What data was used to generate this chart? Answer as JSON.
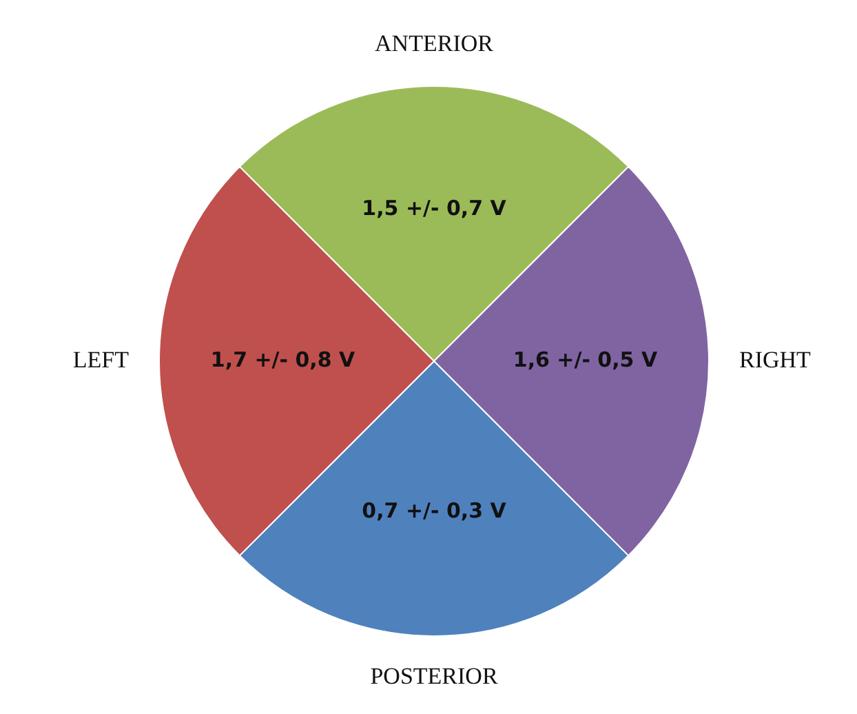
{
  "chart_data": {
    "type": "pie",
    "categories": [
      "ANTERIOR",
      "RIGHT",
      "POSTERIOR",
      "LEFT"
    ],
    "values": [
      25,
      25,
      25,
      25
    ],
    "colors": [
      "#9bbb59",
      "#8064a2",
      "#4f81bd",
      "#c0504d"
    ],
    "annotations": [
      "1,5 +/- 0,7 V",
      "1,6 +/- 0,5 V",
      "0,7 +/- 0,3 V",
      "1,7 +/- 0,8 V"
    ],
    "legend": false
  }
}
